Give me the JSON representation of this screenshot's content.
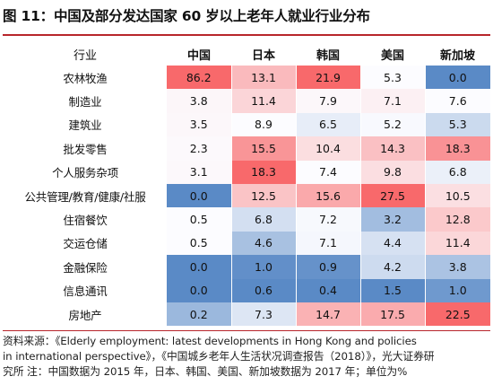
{
  "title": "图 11：中国及部分发达国家 60 岁以上老年人就业行业分布",
  "table": {
    "industry_header": "行业",
    "countries": [
      "中国",
      "日本",
      "韩国",
      "美国",
      "新加坡"
    ],
    "rows": [
      {
        "label": "农林牧渔",
        "values": [
          "86.2",
          "13.1",
          "21.9",
          "5.3",
          "0.0"
        ]
      },
      {
        "label": "制造业",
        "values": [
          "3.8",
          "11.4",
          "7.9",
          "7.1",
          "7.6"
        ]
      },
      {
        "label": "建筑业",
        "values": [
          "3.5",
          "8.9",
          "6.5",
          "5.2",
          "5.3"
        ]
      },
      {
        "label": "批发零售",
        "values": [
          "2.3",
          "15.5",
          "10.4",
          "14.3",
          "18.3"
        ]
      },
      {
        "label": "个人服务杂项",
        "values": [
          "3.1",
          "18.3",
          "7.4",
          "9.8",
          "6.8"
        ]
      },
      {
        "label": "公共管理/教育/健康/社服",
        "values": [
          "0.0",
          "12.5",
          "15.6",
          "27.5",
          "10.5"
        ]
      },
      {
        "label": "住宿餐饮",
        "values": [
          "0.5",
          "6.8",
          "7.2",
          "3.2",
          "12.8"
        ]
      },
      {
        "label": "交运仓储",
        "values": [
          "0.5",
          "4.6",
          "7.1",
          "4.4",
          "11.4"
        ]
      },
      {
        "label": "金融保险",
        "values": [
          "0.0",
          "1.0",
          "0.9",
          "4.2",
          "3.8"
        ]
      },
      {
        "label": "信息通讯",
        "values": [
          "0.0",
          "0.6",
          "0.4",
          "1.5",
          "1.0"
        ]
      },
      {
        "label": "房地产",
        "values": [
          "0.2",
          "7.3",
          "14.7",
          "17.5",
          "22.5"
        ]
      }
    ]
  },
  "colors": {
    "rule": "#b8252b",
    "high": "#f8696b",
    "mid": "#fcfcff",
    "low": "#5a8ac6"
  },
  "footer": {
    "line1": "资料来源：《Elderly employment: latest developments in Hong Kong and policies",
    "line2": "in international perspective》，《中国城乡老年人生活状况调查报告（2018）》，光大证券研",
    "line3": "究所 注：中国数据为 2015 年，日本、韩国、美国、新加坡数据为 2017 年；单位为%"
  }
}
